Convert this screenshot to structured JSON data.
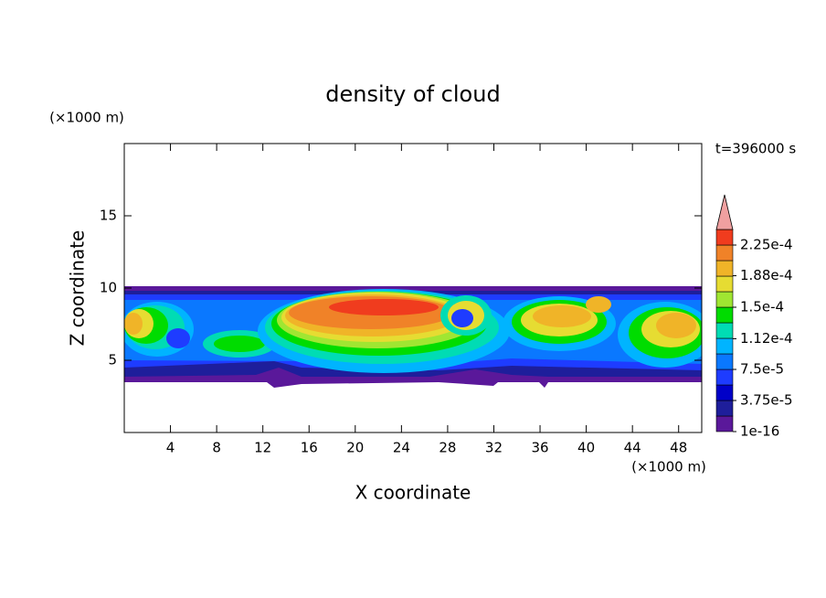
{
  "chart_data": {
    "type": "contour",
    "title": "density of cloud",
    "x_label": "X coordinate",
    "y_label": "Z coordinate",
    "x_unit": "(×1000 m)",
    "y_unit": "(×1000 m)",
    "time_label": "t=396000 s",
    "xlim": [
      0,
      50
    ],
    "ylim": [
      0,
      20
    ],
    "xticks": [
      4,
      8,
      12,
      16,
      20,
      24,
      28,
      32,
      36,
      40,
      44,
      48
    ],
    "yticks": [
      5,
      10,
      15
    ],
    "colorbar": {
      "ticks": [
        {
          "value": 1e-16,
          "label": "1e-16"
        },
        {
          "value": 3.75e-05,
          "label": "3.75e-5"
        },
        {
          "value": 7.5e-05,
          "label": "7.5e-5"
        },
        {
          "value": 0.000112,
          "label": "1.12e-4"
        },
        {
          "value": 0.00015,
          "label": "1.5e-4"
        },
        {
          "value": 0.000188,
          "label": "1.88e-4"
        },
        {
          "value": 0.000225,
          "label": "2.25e-4"
        }
      ],
      "colors": [
        "#5a189a",
        "#1e1e9b",
        "#0000c8",
        "#1e3cff",
        "#0a78ff",
        "#00b4ff",
        "#00dcb4",
        "#00dc00",
        "#a0e632",
        "#e6dc32",
        "#f0b428",
        "#f08228",
        "#f03c1e",
        "#f0a0a0"
      ]
    }
  }
}
